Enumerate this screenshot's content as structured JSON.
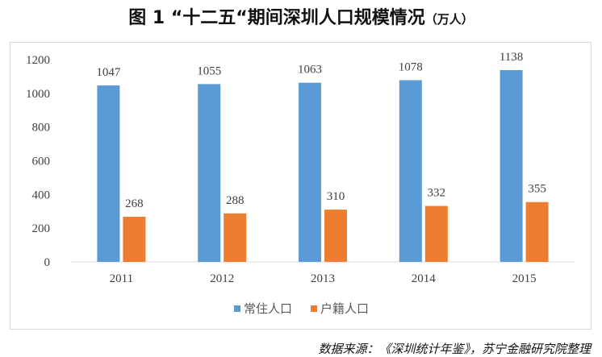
{
  "chart_data": {
    "type": "bar",
    "title": "图 1 “十二五“期间深圳人口规模情况",
    "unit": "（万人）",
    "categories": [
      "2011",
      "2012",
      "2013",
      "2014",
      "2015"
    ],
    "series": [
      {
        "name": "常住人口",
        "color": "#5b9bd5",
        "values": [
          1047,
          1055,
          1063,
          1078,
          1138
        ]
      },
      {
        "name": "户籍人口",
        "color": "#ed7d31",
        "values": [
          268,
          288,
          310,
          332,
          355
        ]
      }
    ],
    "ylim": [
      0,
      1200
    ],
    "yticks": [
      0,
      200,
      400,
      600,
      800,
      1000,
      1200
    ],
    "grid": false,
    "legend": "bottom"
  },
  "source": "数据来源：《深圳统计年鉴》，苏宁金融研究院整理"
}
